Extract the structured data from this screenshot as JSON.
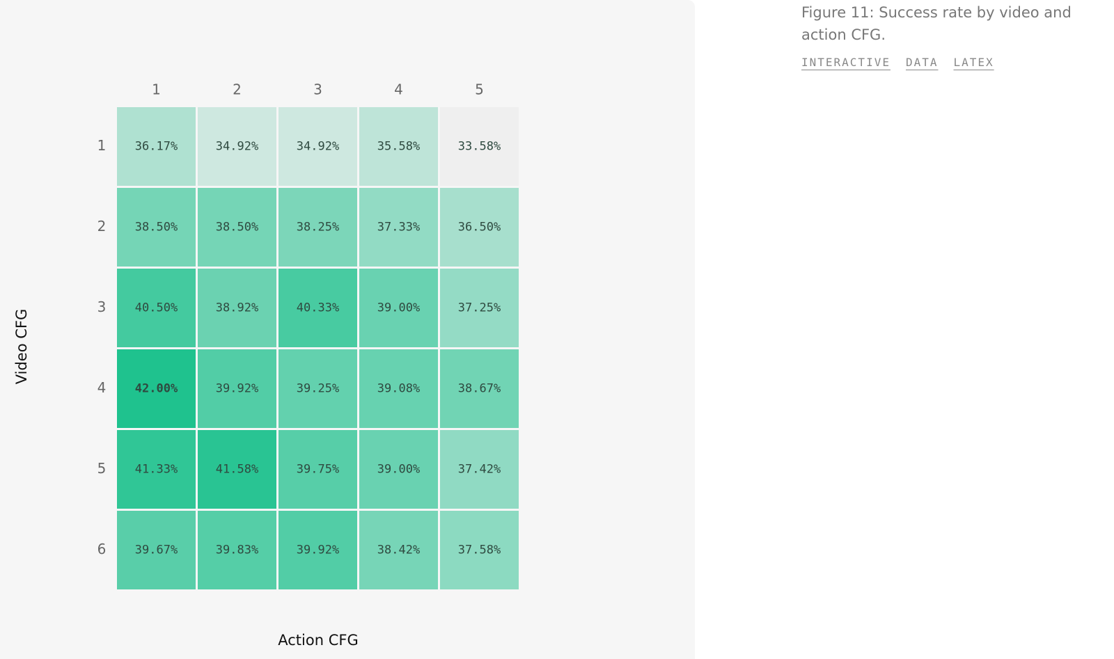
{
  "chart_data": {
    "type": "heatmap",
    "x_label": "Action CFG",
    "y_label": "Video CFG",
    "x_categories": [
      1,
      2,
      3,
      4,
      5
    ],
    "y_categories": [
      1,
      2,
      3,
      4,
      5,
      6
    ],
    "values": [
      [
        36.17,
        34.92,
        34.92,
        35.58,
        33.58
      ],
      [
        38.5,
        38.5,
        38.25,
        37.33,
        36.5
      ],
      [
        40.5,
        38.92,
        40.33,
        39.0,
        37.25
      ],
      [
        42.0,
        39.92,
        39.25,
        39.08,
        38.67
      ],
      [
        41.33,
        41.58,
        39.75,
        39.0,
        37.42
      ],
      [
        39.67,
        39.83,
        39.92,
        38.42,
        37.58
      ]
    ],
    "value_labels": [
      [
        "36.17%",
        "34.92%",
        "34.92%",
        "35.58%",
        "33.58%"
      ],
      [
        "38.50%",
        "38.50%",
        "38.25%",
        "37.33%",
        "36.50%"
      ],
      [
        "40.50%",
        "38.92%",
        "40.33%",
        "39.00%",
        "37.25%"
      ],
      [
        "42.00%",
        "39.92%",
        "39.25%",
        "39.08%",
        "38.67%"
      ],
      [
        "41.33%",
        "41.58%",
        "39.75%",
        "39.00%",
        "37.42%"
      ],
      [
        "39.67%",
        "39.83%",
        "39.92%",
        "38.42%",
        "37.58%"
      ]
    ],
    "colors": [
      "#efefef",
      "#1fc28e"
    ]
  },
  "caption": "Figure 11: Success rate by video and action CFG.",
  "links": [
    "INTERACTIVE",
    "DATA",
    "LATEX"
  ]
}
